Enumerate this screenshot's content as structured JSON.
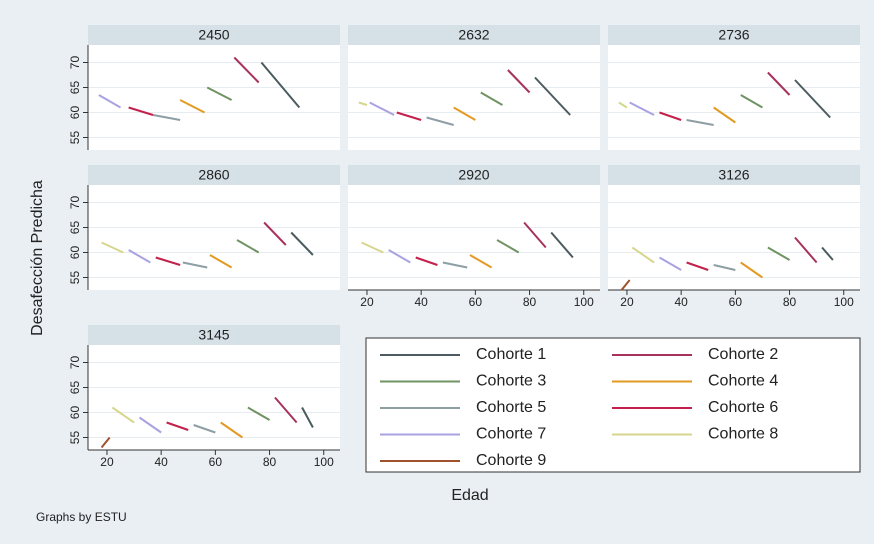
{
  "chart_data": [
    {
      "type": "line",
      "title": "2450",
      "xlim": [
        13,
        106
      ],
      "ylim": [
        52.5,
        73.5
      ],
      "yticks": [
        55,
        60,
        65,
        70
      ],
      "grid": true,
      "series": [
        {
          "name": "Cohorte 1",
          "color": "#4b5b60",
          "x": [
            77,
            91
          ],
          "values": [
            70,
            61
          ]
        },
        {
          "name": "Cohorte 2",
          "color": "#a8325e",
          "x": [
            67,
            76
          ],
          "values": [
            71,
            66
          ]
        },
        {
          "name": "Cohorte 3",
          "color": "#6f9363",
          "x": [
            57,
            66
          ],
          "values": [
            65,
            62.5
          ]
        },
        {
          "name": "Cohorte 4",
          "color": "#e39a22",
          "x": [
            47,
            56
          ],
          "values": [
            62.5,
            60
          ]
        },
        {
          "name": "Cohorte 5",
          "color": "#8d9ea4",
          "x": [
            37,
            47
          ],
          "values": [
            59.5,
            58.5
          ]
        },
        {
          "name": "Cohorte 6",
          "color": "#c3214b",
          "x": [
            28,
            37
          ],
          "values": [
            61,
            59.5
          ]
        },
        {
          "name": "Cohorte 7",
          "color": "#a9a2e0",
          "x": [
            17,
            25
          ],
          "values": [
            63.5,
            61
          ]
        }
      ]
    },
    {
      "type": "line",
      "title": "2632",
      "xlim": [
        13,
        106
      ],
      "ylim": [
        52.5,
        73.5
      ],
      "yticks": [
        55,
        60,
        65,
        70
      ],
      "grid": true,
      "series": [
        {
          "name": "Cohorte 1",
          "color": "#4b5b60",
          "x": [
            82,
            95
          ],
          "values": [
            67,
            59.5
          ]
        },
        {
          "name": "Cohorte 2",
          "color": "#a8325e",
          "x": [
            72,
            80
          ],
          "values": [
            68.5,
            64
          ]
        },
        {
          "name": "Cohorte 3",
          "color": "#6f9363",
          "x": [
            62,
            70
          ],
          "values": [
            64,
            61.5
          ]
        },
        {
          "name": "Cohorte 4",
          "color": "#e39a22",
          "x": [
            52,
            60
          ],
          "values": [
            61,
            58.5
          ]
        },
        {
          "name": "Cohorte 5",
          "color": "#8d9ea4",
          "x": [
            42,
            52
          ],
          "values": [
            59,
            57.5
          ]
        },
        {
          "name": "Cohorte 6",
          "color": "#c3214b",
          "x": [
            31,
            40
          ],
          "values": [
            60,
            58.5
          ]
        },
        {
          "name": "Cohorte 7",
          "color": "#a9a2e0",
          "x": [
            21,
            30
          ],
          "values": [
            62,
            59.5
          ]
        },
        {
          "name": "Cohorte 8",
          "color": "#d6d68e",
          "x": [
            17,
            20
          ],
          "values": [
            62,
            61.5
          ]
        }
      ]
    },
    {
      "type": "line",
      "title": "2736",
      "xlim": [
        13,
        106
      ],
      "ylim": [
        52.5,
        73.5
      ],
      "yticks": [
        55,
        60,
        65,
        70
      ],
      "grid": true,
      "series": [
        {
          "name": "Cohorte 1",
          "color": "#4b5b60",
          "x": [
            82,
            95
          ],
          "values": [
            66.5,
            59
          ]
        },
        {
          "name": "Cohorte 2",
          "color": "#a8325e",
          "x": [
            72,
            80
          ],
          "values": [
            68,
            63.5
          ]
        },
        {
          "name": "Cohorte 3",
          "color": "#6f9363",
          "x": [
            62,
            70
          ],
          "values": [
            63.5,
            61
          ]
        },
        {
          "name": "Cohorte 4",
          "color": "#e39a22",
          "x": [
            52,
            60
          ],
          "values": [
            61,
            58
          ]
        },
        {
          "name": "Cohorte 5",
          "color": "#8d9ea4",
          "x": [
            42,
            52
          ],
          "values": [
            58.5,
            57.5
          ]
        },
        {
          "name": "Cohorte 6",
          "color": "#c3214b",
          "x": [
            32,
            40
          ],
          "values": [
            60,
            58.5
          ]
        },
        {
          "name": "Cohorte 7",
          "color": "#a9a2e0",
          "x": [
            21,
            30
          ],
          "values": [
            62,
            59.5
          ]
        },
        {
          "name": "Cohorte 8",
          "color": "#d6d68e",
          "x": [
            17,
            20
          ],
          "values": [
            62,
            61
          ]
        }
      ]
    },
    {
      "type": "line",
      "title": "2860",
      "xlim": [
        13,
        106
      ],
      "ylim": [
        52.5,
        73.5
      ],
      "yticks": [
        55,
        60,
        65,
        70
      ],
      "grid": true,
      "series": [
        {
          "name": "Cohorte 1",
          "color": "#4b5b60",
          "x": [
            88,
            96
          ],
          "values": [
            64,
            59.5
          ]
        },
        {
          "name": "Cohorte 2",
          "color": "#a8325e",
          "x": [
            78,
            86
          ],
          "values": [
            66,
            61.5
          ]
        },
        {
          "name": "Cohorte 3",
          "color": "#6f9363",
          "x": [
            68,
            76
          ],
          "values": [
            62.5,
            60
          ]
        },
        {
          "name": "Cohorte 4",
          "color": "#e39a22",
          "x": [
            58,
            66
          ],
          "values": [
            59.5,
            57
          ]
        },
        {
          "name": "Cohorte 5",
          "color": "#8d9ea4",
          "x": [
            48,
            57
          ],
          "values": [
            58,
            57
          ]
        },
        {
          "name": "Cohorte 6",
          "color": "#c3214b",
          "x": [
            38,
            47
          ],
          "values": [
            59,
            57.5
          ]
        },
        {
          "name": "Cohorte 7",
          "color": "#a9a2e0",
          "x": [
            28,
            36
          ],
          "values": [
            60.5,
            58
          ]
        },
        {
          "name": "Cohorte 8",
          "color": "#d6d68e",
          "x": [
            18,
            26
          ],
          "values": [
            62,
            60
          ]
        }
      ]
    },
    {
      "type": "line",
      "title": "2920",
      "xlim": [
        13,
        106
      ],
      "ylim": [
        52.5,
        73.5
      ],
      "yticks": [
        55,
        60,
        65,
        70
      ],
      "xticks": [
        20,
        40,
        60,
        80,
        100
      ],
      "grid": true,
      "series": [
        {
          "name": "Cohorte 1",
          "color": "#4b5b60",
          "x": [
            88,
            96
          ],
          "values": [
            64,
            59
          ]
        },
        {
          "name": "Cohorte 2",
          "color": "#a8325e",
          "x": [
            78,
            86
          ],
          "values": [
            66,
            61
          ]
        },
        {
          "name": "Cohorte 3",
          "color": "#6f9363",
          "x": [
            68,
            76
          ],
          "values": [
            62.5,
            60
          ]
        },
        {
          "name": "Cohorte 4",
          "color": "#e39a22",
          "x": [
            58,
            66
          ],
          "values": [
            59.5,
            57
          ]
        },
        {
          "name": "Cohorte 5",
          "color": "#8d9ea4",
          "x": [
            48,
            57
          ],
          "values": [
            58,
            57
          ]
        },
        {
          "name": "Cohorte 6",
          "color": "#c3214b",
          "x": [
            38,
            46
          ],
          "values": [
            59,
            57.5
          ]
        },
        {
          "name": "Cohorte 7",
          "color": "#a9a2e0",
          "x": [
            28,
            36
          ],
          "values": [
            60.5,
            58
          ]
        },
        {
          "name": "Cohorte 8",
          "color": "#d6d68e",
          "x": [
            18,
            26
          ],
          "values": [
            62,
            60
          ]
        }
      ]
    },
    {
      "type": "line",
      "title": "3126",
      "xlim": [
        13,
        106
      ],
      "ylim": [
        52.5,
        73.5
      ],
      "yticks": [
        55,
        60,
        65,
        70
      ],
      "xticks": [
        20,
        40,
        60,
        80,
        100
      ],
      "grid": true,
      "series": [
        {
          "name": "Cohorte 1",
          "color": "#4b5b60",
          "x": [
            92,
            96
          ],
          "values": [
            61,
            58.5
          ]
        },
        {
          "name": "Cohorte 2",
          "color": "#a8325e",
          "x": [
            82,
            90
          ],
          "values": [
            63,
            58
          ]
        },
        {
          "name": "Cohorte 3",
          "color": "#6f9363",
          "x": [
            72,
            80
          ],
          "values": [
            61,
            58.5
          ]
        },
        {
          "name": "Cohorte 4",
          "color": "#e39a22",
          "x": [
            62,
            70
          ],
          "values": [
            58,
            55
          ]
        },
        {
          "name": "Cohorte 5",
          "color": "#8d9ea4",
          "x": [
            52,
            60
          ],
          "values": [
            57.5,
            56.5
          ]
        },
        {
          "name": "Cohorte 6",
          "color": "#c3214b",
          "x": [
            42,
            50
          ],
          "values": [
            58,
            56.5
          ]
        },
        {
          "name": "Cohorte 7",
          "color": "#a9a2e0",
          "x": [
            32,
            40
          ],
          "values": [
            59,
            56.5
          ]
        },
        {
          "name": "Cohorte 8",
          "color": "#d6d68e",
          "x": [
            22,
            30
          ],
          "values": [
            61,
            58
          ]
        },
        {
          "name": "Cohorte 9",
          "color": "#a0522d",
          "x": [
            18,
            21
          ],
          "values": [
            52.5,
            54.5
          ]
        }
      ]
    },
    {
      "type": "line",
      "title": "3145",
      "xlim": [
        13,
        106
      ],
      "ylim": [
        52.5,
        73.5
      ],
      "yticks": [
        55,
        60,
        65,
        70
      ],
      "xticks": [
        20,
        40,
        60,
        80,
        100
      ],
      "grid": true,
      "series": [
        {
          "name": "Cohorte 1",
          "color": "#4b5b60",
          "x": [
            92,
            96
          ],
          "values": [
            61,
            57
          ]
        },
        {
          "name": "Cohorte 2",
          "color": "#a8325e",
          "x": [
            82,
            90
          ],
          "values": [
            63,
            58
          ]
        },
        {
          "name": "Cohorte 3",
          "color": "#6f9363",
          "x": [
            72,
            80
          ],
          "values": [
            61,
            58.5
          ]
        },
        {
          "name": "Cohorte 4",
          "color": "#e39a22",
          "x": [
            62,
            70
          ],
          "values": [
            58,
            55
          ]
        },
        {
          "name": "Cohorte 5",
          "color": "#8d9ea4",
          "x": [
            52,
            60
          ],
          "values": [
            57.5,
            56
          ]
        },
        {
          "name": "Cohorte 6",
          "color": "#c3214b",
          "x": [
            42,
            50
          ],
          "values": [
            58,
            56.5
          ]
        },
        {
          "name": "Cohorte 7",
          "color": "#a9a2e0",
          "x": [
            32,
            40
          ],
          "values": [
            59,
            56
          ]
        },
        {
          "name": "Cohorte 8",
          "color": "#d6d68e",
          "x": [
            22,
            30
          ],
          "values": [
            61,
            58
          ]
        },
        {
          "name": "Cohorte 9",
          "color": "#a0522d",
          "x": [
            18,
            21
          ],
          "values": [
            53,
            55
          ]
        }
      ]
    }
  ],
  "y_label": "Desafección Predicha",
  "x_label": "Edad",
  "note": "Graphs by ESTU"
}
